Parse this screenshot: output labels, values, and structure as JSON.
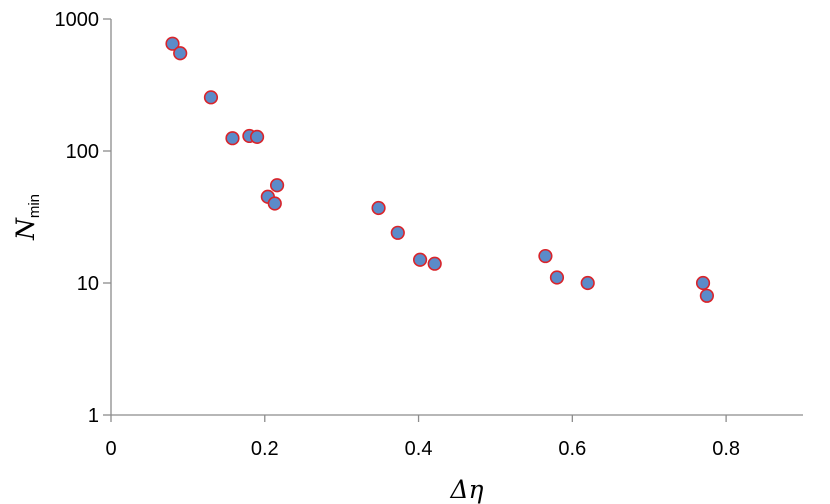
{
  "chart_data": {
    "type": "scatter",
    "title": "",
    "xlabel": "Δη",
    "ylabel": {
      "main": "N",
      "sub": "min"
    },
    "xlim": [
      0,
      0.9
    ],
    "ylim": [
      1,
      1000
    ],
    "yscale": "log",
    "grid": false,
    "legend": "none",
    "x_ticks": [
      "0",
      "0.2",
      "0.4",
      "0.6",
      "0.8"
    ],
    "x_tick_values": [
      0,
      0.2,
      0.4,
      0.6,
      0.8
    ],
    "y_ticks": [
      "1",
      "10",
      "100",
      "1000"
    ],
    "y_tick_values": [
      1,
      10,
      100,
      1000
    ],
    "marker": {
      "fill": "#5B8BC9",
      "stroke": "#D9242A"
    },
    "series": [
      {
        "points": [
          {
            "x": 0.08,
            "y": 650
          },
          {
            "x": 0.09,
            "y": 550
          },
          {
            "x": 0.13,
            "y": 255
          },
          {
            "x": 0.158,
            "y": 125
          },
          {
            "x": 0.18,
            "y": 130
          },
          {
            "x": 0.19,
            "y": 128
          },
          {
            "x": 0.204,
            "y": 45
          },
          {
            "x": 0.213,
            "y": 40
          },
          {
            "x": 0.216,
            "y": 55
          },
          {
            "x": 0.348,
            "y": 37
          },
          {
            "x": 0.373,
            "y": 24
          },
          {
            "x": 0.402,
            "y": 15
          },
          {
            "x": 0.421,
            "y": 14
          },
          {
            "x": 0.565,
            "y": 16
          },
          {
            "x": 0.58,
            "y": 11
          },
          {
            "x": 0.62,
            "y": 10
          },
          {
            "x": 0.77,
            "y": 10
          },
          {
            "x": 0.775,
            "y": 8
          }
        ]
      }
    ]
  }
}
